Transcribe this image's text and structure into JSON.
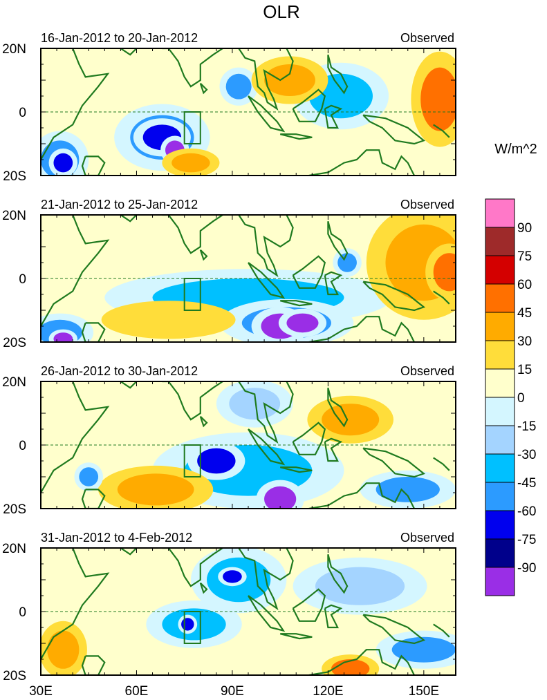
{
  "chart_data": {
    "type": "heatmap",
    "title": "OLR",
    "units_label": "W/m^2",
    "x_ticks": [
      "30E",
      "60E",
      "90E",
      "120E",
      "150E"
    ],
    "x_tick_values": [
      30,
      60,
      90,
      120,
      150
    ],
    "y_ticks": [
      "20N",
      "0",
      "20S"
    ],
    "y_tick_values": [
      20,
      0,
      -20
    ],
    "xlim": [
      30,
      160
    ],
    "ylim": [
      -20,
      20
    ],
    "color_levels": [
      {
        "label": "90",
        "color": "#ff78c8"
      },
      {
        "label": "75",
        "color": "#9e2a2a"
      },
      {
        "label": "60",
        "color": "#d40000"
      },
      {
        "label": "45",
        "color": "#ff7000"
      },
      {
        "label": "30",
        "color": "#ffab00"
      },
      {
        "label": "15",
        "color": "#ffdd3a"
      },
      {
        "label": "0",
        "color": "#ffffcc"
      },
      {
        "label": "-15",
        "color": "#d4f6ff"
      },
      {
        "label": "-30",
        "color": "#a4d4ff"
      },
      {
        "label": "-45",
        "color": "#00c0ff"
      },
      {
        "label": "-60",
        "color": "#2c9bff"
      },
      {
        "label": "-75",
        "color": "#0000ee"
      },
      {
        "label": "-90",
        "color": "#00008b"
      },
      {
        "label": "",
        "color": "#9a2ee6"
      }
    ],
    "panels": [
      {
        "period": "16-Jan-2012 to 20-Jan-2012",
        "label": "Observed",
        "features": [
          {
            "lon": 36,
            "lat": -15,
            "rx": 6,
            "ry": 6,
            "level": -60
          },
          {
            "lon": 37,
            "lat": -16,
            "rx": 3,
            "ry": 3,
            "level": -75
          },
          {
            "lon": 68,
            "lat": -8,
            "rx": 10,
            "ry": 7,
            "level": -60
          },
          {
            "lon": 68,
            "lat": -8,
            "rx": 6,
            "ry": 4,
            "level": -75
          },
          {
            "lon": 72,
            "lat": -12,
            "rx": 3,
            "ry": 3,
            "level": -90
          },
          {
            "lon": 92,
            "lat": 8,
            "rx": 4,
            "ry": 4,
            "level": -60
          },
          {
            "lon": 124,
            "lat": 5,
            "rx": 10,
            "ry": 7,
            "level": -45
          },
          {
            "lon": 155,
            "lat": 4,
            "rx": 6,
            "ry": 10,
            "level": 45
          },
          {
            "lon": 108,
            "lat": 10,
            "rx": 8,
            "ry": 5,
            "level": 30
          },
          {
            "lon": 77,
            "lat": -16,
            "rx": 6,
            "ry": 3,
            "level": 30
          }
        ]
      },
      {
        "period": "21-Jan-2012 to 25-Jan-2012",
        "label": "Observed",
        "features": [
          {
            "lon": 95,
            "lat": -6,
            "rx": 30,
            "ry": 6,
            "level": -45
          },
          {
            "lon": 107,
            "lat": -14,
            "rx": 14,
            "ry": 5,
            "level": -60
          },
          {
            "lon": 105,
            "lat": -15,
            "rx": 6,
            "ry": 4,
            "level": -90
          },
          {
            "lon": 112,
            "lat": -14,
            "rx": 5,
            "ry": 3,
            "level": -90
          },
          {
            "lon": 126,
            "lat": 5,
            "rx": 3,
            "ry": 3,
            "level": -60
          },
          {
            "lon": 36,
            "lat": -17,
            "rx": 7,
            "ry": 4,
            "level": -60
          },
          {
            "lon": 37,
            "lat": -19,
            "rx": 3,
            "ry": 2,
            "level": -90
          },
          {
            "lon": 150,
            "lat": 5,
            "rx": 12,
            "ry": 12,
            "level": 30
          },
          {
            "lon": 158,
            "lat": 2,
            "rx": 5,
            "ry": 6,
            "level": 45
          },
          {
            "lon": 70,
            "lat": -13,
            "rx": 14,
            "ry": 4,
            "level": 15
          }
        ]
      },
      {
        "period": "26-Jan-2012 to 30-Jan-2012",
        "label": "Observed",
        "features": [
          {
            "lon": 95,
            "lat": -8,
            "rx": 20,
            "ry": 8,
            "level": -45
          },
          {
            "lon": 85,
            "lat": -5,
            "rx": 6,
            "ry": 4,
            "level": -75
          },
          {
            "lon": 105,
            "lat": -17,
            "rx": 5,
            "ry": 4,
            "level": -90
          },
          {
            "lon": 145,
            "lat": -14,
            "rx": 10,
            "ry": 4,
            "level": -60
          },
          {
            "lon": 66,
            "lat": -14,
            "rx": 12,
            "ry": 5,
            "level": 30
          },
          {
            "lon": 127,
            "lat": 8,
            "rx": 9,
            "ry": 5,
            "level": 30
          },
          {
            "lon": 45,
            "lat": -10,
            "rx": 3,
            "ry": 3,
            "level": -60
          },
          {
            "lon": 97,
            "lat": 13,
            "rx": 8,
            "ry": 5,
            "level": -30
          }
        ]
      },
      {
        "period": "31-Jan-2012 to 4-Feb-2012",
        "label": "Observed",
        "features": [
          {
            "lon": 92,
            "lat": 10,
            "rx": 10,
            "ry": 7,
            "level": -45
          },
          {
            "lon": 90,
            "lat": 11,
            "rx": 3,
            "ry": 2,
            "level": -75
          },
          {
            "lon": 78,
            "lat": -4,
            "rx": 10,
            "ry": 5,
            "level": -45
          },
          {
            "lon": 76,
            "lat": -4,
            "rx": 2,
            "ry": 2,
            "level": -75
          },
          {
            "lon": 150,
            "lat": -12,
            "rx": 10,
            "ry": 4,
            "level": -60
          },
          {
            "lon": 127,
            "lat": -18,
            "rx": 6,
            "ry": 3,
            "level": 45
          },
          {
            "lon": 37,
            "lat": -12,
            "rx": 5,
            "ry": 6,
            "level": 30
          },
          {
            "lon": 130,
            "lat": 8,
            "rx": 14,
            "ry": 6,
            "level": -30
          }
        ]
      }
    ]
  }
}
